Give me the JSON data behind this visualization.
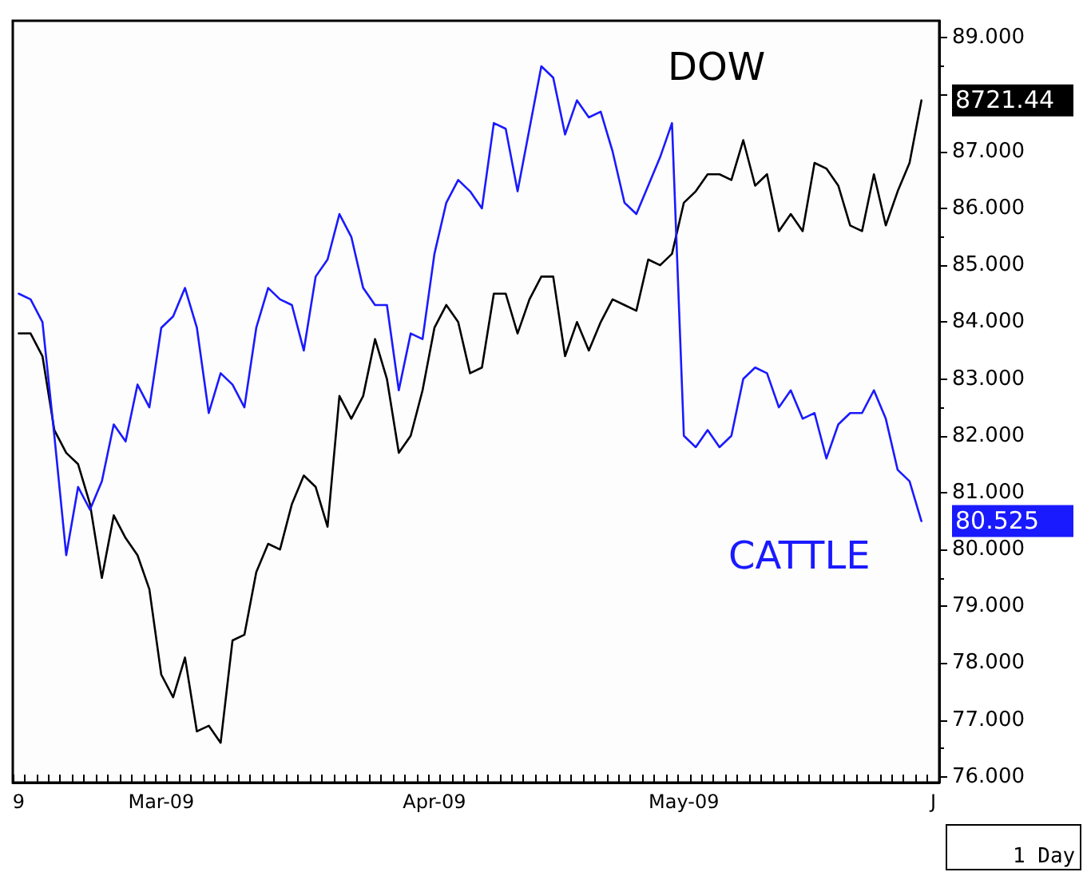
{
  "chart_data": {
    "type": "line",
    "categories": [
      "9",
      null,
      null,
      null,
      null,
      null,
      null,
      null,
      null,
      null,
      null,
      null,
      "Mar-09",
      null,
      null,
      null,
      null,
      null,
      null,
      null,
      null,
      null,
      null,
      null,
      null,
      null,
      null,
      null,
      null,
      null,
      null,
      null,
      null,
      null,
      null,
      "Apr-09",
      null,
      null,
      null,
      null,
      null,
      null,
      null,
      null,
      null,
      null,
      null,
      null,
      null,
      null,
      null,
      null,
      null,
      null,
      null,
      null,
      "May-09",
      null,
      null,
      null,
      null,
      null,
      null,
      null,
      null,
      null,
      null,
      null,
      null,
      null,
      null,
      null,
      null,
      null,
      null,
      null,
      null,
      "J"
    ],
    "series": [
      {
        "name": "DOW",
        "color": "#000000",
        "values": [
          83.8,
          83.8,
          83.4,
          82.1,
          81.7,
          81.5,
          80.8,
          79.5,
          80.6,
          80.2,
          79.9,
          79.3,
          77.8,
          77.4,
          78.1,
          76.8,
          76.9,
          76.6,
          78.4,
          78.5,
          79.6,
          80.1,
          80.0,
          80.8,
          81.3,
          81.1,
          80.4,
          82.7,
          82.3,
          82.7,
          83.7,
          83.0,
          81.7,
          82.0,
          82.8,
          83.9,
          84.3,
          84.0,
          83.1,
          83.2,
          84.5,
          84.5,
          83.8,
          84.4,
          84.8,
          84.8,
          83.4,
          84.0,
          83.5,
          84.0,
          84.4,
          84.3,
          84.2,
          85.1,
          85.0,
          85.2,
          86.1,
          86.3,
          86.6,
          86.6,
          86.5,
          87.2,
          86.4,
          86.6,
          85.6,
          85.9,
          85.6,
          86.8,
          86.7,
          86.4,
          85.7,
          85.6,
          86.6,
          85.7,
          86.3,
          86.8,
          87.9,
          null
        ]
      },
      {
        "name": "CATTLE",
        "color": "#1a1aff",
        "values": [
          84.5,
          84.4,
          84.0,
          82.0,
          79.9,
          81.1,
          80.7,
          81.2,
          82.2,
          81.9,
          82.9,
          82.5,
          83.9,
          84.1,
          84.6,
          83.9,
          82.4,
          83.1,
          82.9,
          82.5,
          83.9,
          84.6,
          84.4,
          84.3,
          83.5,
          84.8,
          85.1,
          85.9,
          85.5,
          84.6,
          84.3,
          84.3,
          82.8,
          83.8,
          83.7,
          85.2,
          86.1,
          86.5,
          86.3,
          86.0,
          87.5,
          87.4,
          86.3,
          87.4,
          88.5,
          88.3,
          87.3,
          87.9,
          87.6,
          87.7,
          87.0,
          86.1,
          85.9,
          86.4,
          86.9,
          87.5,
          82.0,
          81.8,
          82.1,
          81.8,
          82.0,
          83.0,
          83.2,
          83.1,
          82.5,
          82.8,
          82.3,
          82.4,
          81.6,
          82.2,
          82.4,
          82.4,
          82.8,
          82.3,
          81.4,
          81.2,
          80.5,
          null
        ]
      }
    ],
    "ylim": [
      75.9,
      89.3
    ],
    "yticks": [
      {
        "value": 76,
        "label": "76.000"
      },
      {
        "value": 77,
        "label": "77.000"
      },
      {
        "value": 78,
        "label": "78.000"
      },
      {
        "value": 79,
        "label": "79.000"
      },
      {
        "value": 80,
        "label": "80.000"
      },
      {
        "value": 81,
        "label": "81.000"
      },
      {
        "value": 82,
        "label": "82.000"
      },
      {
        "value": 83,
        "label": "83.000"
      },
      {
        "value": 84,
        "label": "84.000"
      },
      {
        "value": 85,
        "label": "85.000"
      },
      {
        "value": 86,
        "label": "86.000"
      },
      {
        "value": 87,
        "label": "87.000"
      },
      {
        "value": 88,
        "label": null
      },
      {
        "value": 89,
        "label": "89.000"
      }
    ],
    "annotations": [
      "8721.44",
      "80.525",
      "1 Day"
    ],
    "grid": false,
    "legend": false,
    "marker": "none",
    "line_style": "solid"
  }
}
